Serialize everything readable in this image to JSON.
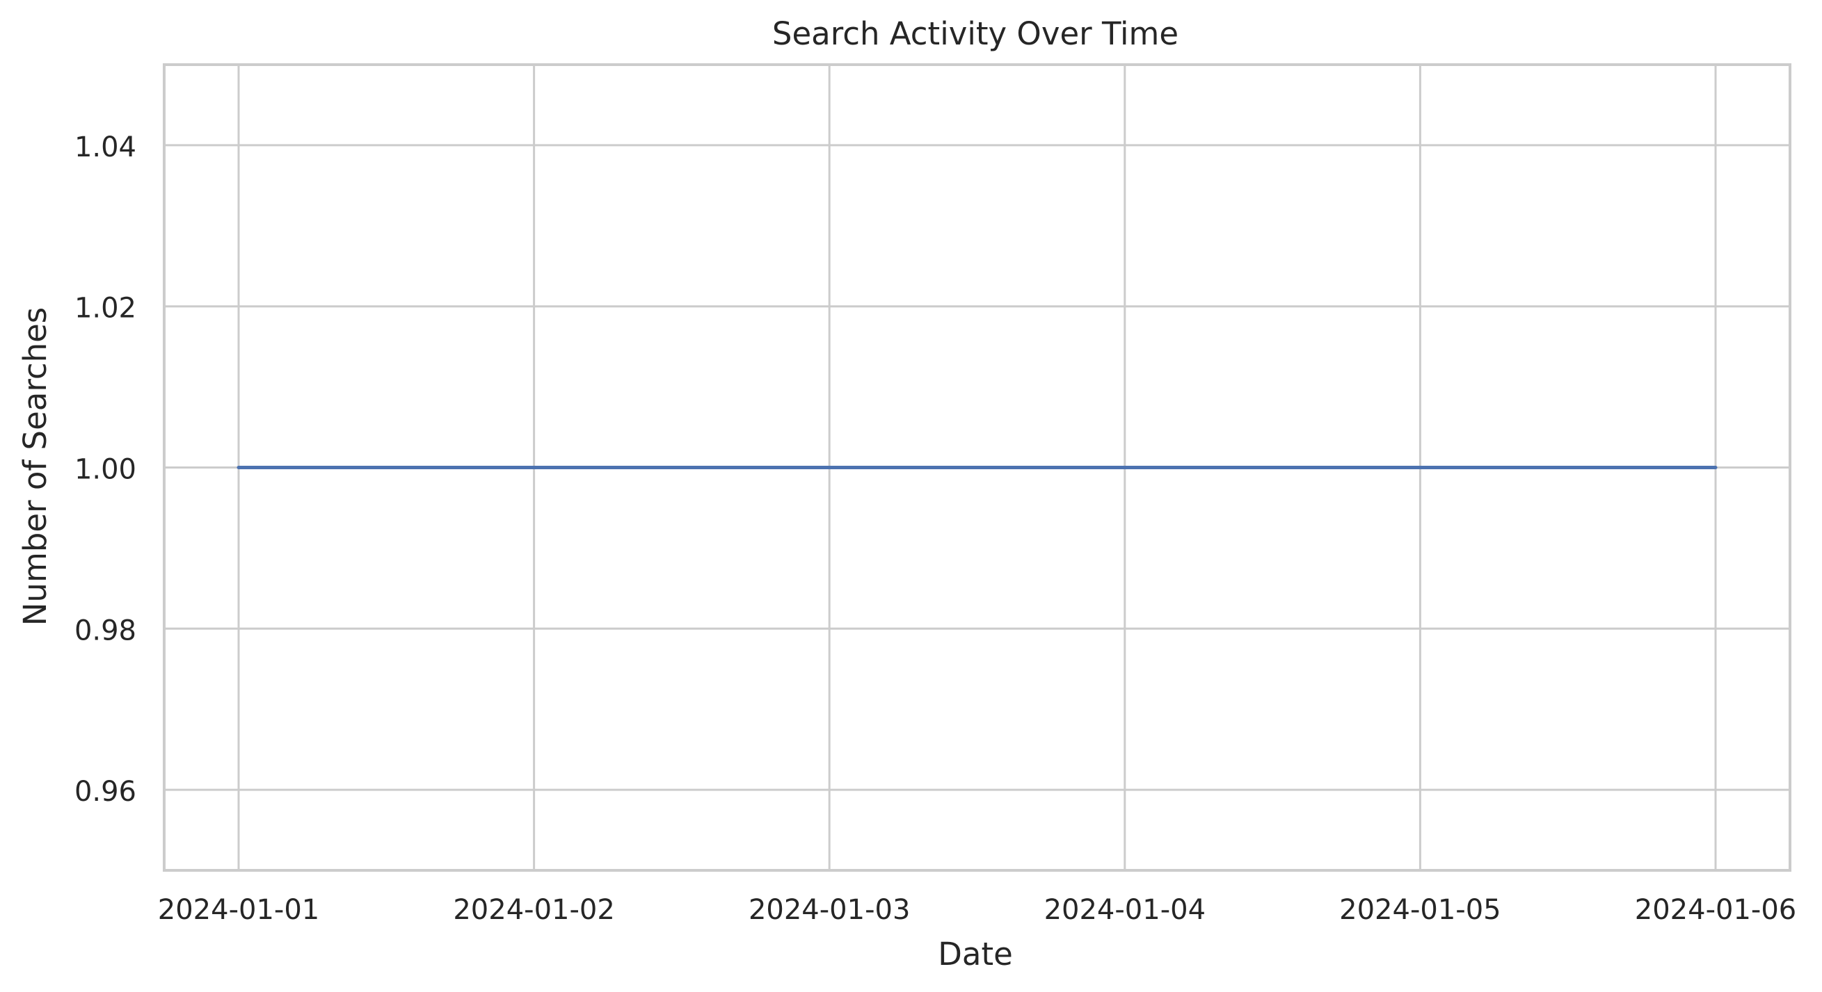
{
  "chart_data": {
    "type": "line",
    "title": "Search Activity Over Time",
    "xlabel": "Date",
    "ylabel": "Number of Searches",
    "x": [
      "2024-01-01",
      "2024-01-02",
      "2024-01-03",
      "2024-01-04",
      "2024-01-05",
      "2024-01-06"
    ],
    "series": [
      {
        "values": [
          1,
          1,
          1,
          1,
          1,
          1
        ],
        "color": "#4c72b0"
      }
    ],
    "xticks": [
      "2024-01-01",
      "2024-01-02",
      "2024-01-03",
      "2024-01-04",
      "2024-01-05",
      "2024-01-06"
    ],
    "yticks": [
      "0.96",
      "0.98",
      "1.00",
      "1.02",
      "1.04"
    ],
    "ylim": [
      0.95,
      1.05
    ],
    "grid": true,
    "colors": {
      "grid": "#cccccc",
      "spine": "#cccccc",
      "text": "#262626"
    }
  }
}
